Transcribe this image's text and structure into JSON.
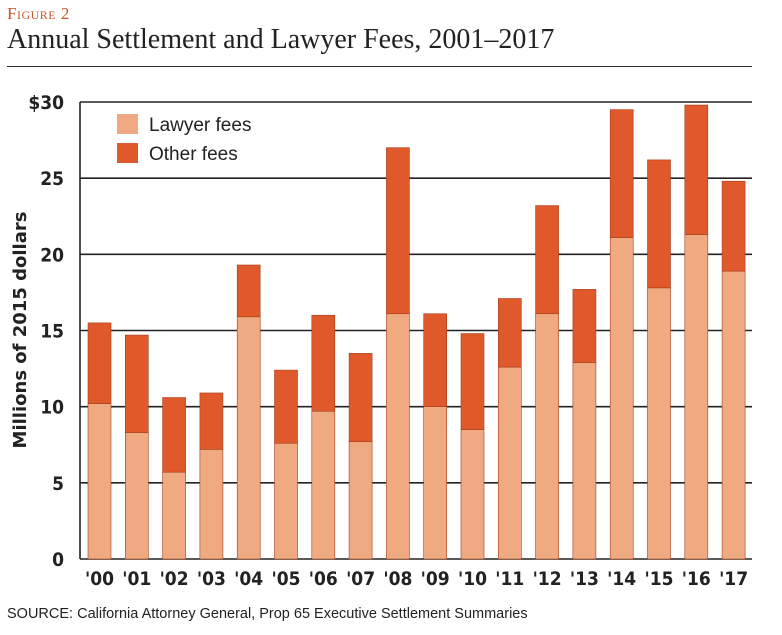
{
  "figure_label": "Figure 2",
  "source": "SOURCE: California Attorney General, Prop 65 Executive Settlement Summaries",
  "chart_data": {
    "type": "bar",
    "stacked": true,
    "title": "Annual Settlement and Lawyer Fees, 2001–2017",
    "xlabel": "",
    "ylabel": "Millions of 2015 dollars",
    "ylim": [
      0,
      30
    ],
    "yticks": [
      {
        "value": 0,
        "label": "0"
      },
      {
        "value": 5,
        "label": "5"
      },
      {
        "value": 10,
        "label": "10"
      },
      {
        "value": 15,
        "label": "15"
      },
      {
        "value": 20,
        "label": "20"
      },
      {
        "value": 25,
        "label": "25"
      },
      {
        "value": 30,
        "label": "$30"
      }
    ],
    "grid": true,
    "legend_position": "top-left",
    "categories": [
      "'00",
      "'01",
      "'02",
      "'03",
      "'04",
      "'05",
      "'06",
      "'07",
      "'08",
      "'09",
      "'10",
      "'11",
      "'12",
      "'13",
      "'14",
      "'15",
      "'16",
      "'17"
    ],
    "series": [
      {
        "name": "Lawyer fees",
        "color": "#f0aa82",
        "values": [
          10.2,
          8.3,
          5.7,
          7.2,
          15.9,
          7.6,
          9.7,
          7.7,
          16.1,
          10.0,
          8.5,
          12.6,
          16.1,
          12.9,
          21.1,
          17.8,
          21.3,
          18.9
        ]
      },
      {
        "name": "Other fees",
        "color": "#e0592a",
        "values": [
          5.3,
          6.4,
          4.9,
          3.7,
          3.4,
          4.8,
          6.3,
          5.8,
          10.9,
          6.1,
          6.3,
          4.5,
          7.1,
          4.8,
          8.4,
          8.4,
          8.5,
          5.9
        ]
      }
    ]
  }
}
